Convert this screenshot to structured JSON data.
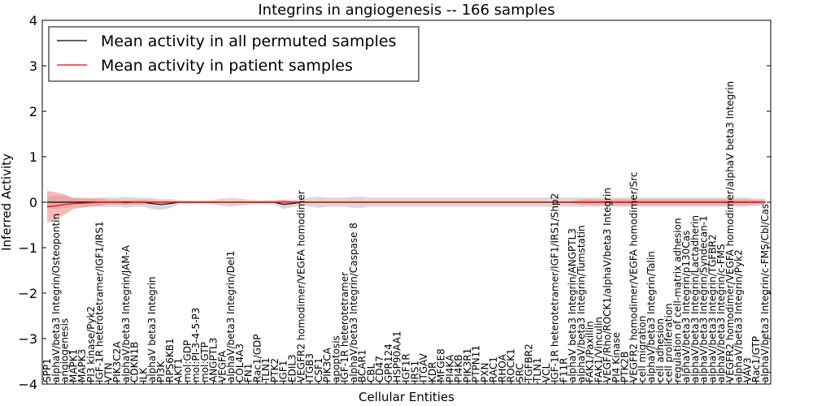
{
  "chart_data": {
    "type": "line",
    "title": "Integrins in angiogenesis -- 166 samples",
    "xlabel": "Cellular Entities",
    "ylabel": "Inferred Activity",
    "ylim": [
      -4,
      4
    ],
    "yticks": [
      -4,
      -3,
      -2,
      -1,
      0,
      1,
      2,
      3,
      4
    ],
    "ytick_labels": [
      "−4",
      "−3",
      "−2",
      "−1",
      "0",
      "1",
      "2",
      "3",
      "4"
    ],
    "grid": false,
    "legend_position": "top-left",
    "categories": [
      "SPP1",
      "alphaV/beta3 Integrin/Osteopontin",
      "angiogenesis",
      "MAPK1",
      "MAPK3",
      "PI3 kinase/Pyk2",
      "IGF-1R heterotetramer/IGF1/IRS1",
      "VTN",
      "PIK3C2A",
      "alphaV/beta3 Integrin/JAM-A",
      "CDKN1B",
      "ILK",
      "alphaV beta3 Integrin",
      "PI3K",
      "RPS6KB1",
      "AKT1",
      "mol:GDP",
      "mol:PI-3-4-5-P3",
      "mol:GTP",
      "ANGPTL3",
      "VEGFA",
      "alphaV/beta3 Integrin/Del1",
      "COL4A3",
      "FN1",
      "Rac1/GDP",
      "TLN1",
      "PTK2",
      "IGF1",
      "EDIL3",
      "VEGFR2 homodimer/VEGFA homodimer",
      "ITGB3",
      "CSF1",
      "PIK3CA",
      "apoptosis",
      "IGF-1R heterotetramer",
      "alphaV/beta3 Integrin/Caspase 8",
      "BCAR1",
      "CBL",
      "CD47",
      "GPR124",
      "HSP90AA1",
      "IGF1R",
      "IRS1",
      "ITGAV",
      "KDR",
      "MFGE8",
      "PI4KA",
      "PI4KB",
      "PIK3R1",
      "PTPN11",
      "PXN",
      "RAC1",
      "RHOA",
      "ROCK1",
      "SRC",
      "TGFBR2",
      "TLN1",
      "VCL",
      "IGF-1R heterotetramer/IGF1/IRS1/Shp2",
      "F11R",
      "alphaV beta3 Integrin/ANGPTL3",
      "alphaV/beta3 Integrin/Tumstatin",
      "FAK1/Paxillin",
      "FAK1/Vinculin",
      "VEGF/Rho/ROCK1/alphaV/beta3 Integrin",
      "PI4 Kinase",
      "PTK2B",
      "VEGFR2 homodimer/VEGFA homodimer/Src",
      "cell migration",
      "alphaV/beta3 Integrin/Talin",
      "cell adhesion",
      "cell proliferation",
      "regulation of cell-matrix adhesion",
      "alphaV/beta3 Integrin/p130Cas",
      "alphaV/beta3 Integrin/Lactadherin",
      "alphaV/beta3 Integrin/Syndecan-1",
      "alphaV/beta3 Integrin/TGFBR2",
      "alphaV/beta3 Integrin/c-FMS",
      "VEGFR2 homodimer/VEGFA homodimer/alphaV beta3 Integrin",
      "alphaV/beta3 Integrin/Pyk2",
      "VAV3",
      "Rac1/GTP",
      "alphaV/beta3 Integrin/c-FMS/Cbl/Cas"
    ],
    "series": [
      {
        "name": "Mean activity in all permuted samples",
        "color": "#000000",
        "band_color": "#aaaaaa",
        "mean": [
          0.0,
          0.0,
          0.0,
          0.0,
          0.0,
          0.0,
          0.0,
          0.0,
          0.0,
          0.0,
          0.0,
          0.0,
          -0.03,
          -0.05,
          -0.03,
          0.0,
          0.0,
          0.0,
          0.0,
          0.0,
          0.0,
          0.0,
          0.0,
          0.0,
          0.0,
          0.0,
          0.0,
          -0.05,
          -0.03,
          0.0,
          0.0,
          0.0,
          0.0,
          0.0,
          0.0,
          0.0,
          0.0,
          0.0,
          0.0,
          0.0,
          0.0,
          0.0,
          0.0,
          0.0,
          0.0,
          0.0,
          0.0,
          0.0,
          0.0,
          0.0,
          0.0,
          0.0,
          0.0,
          0.0,
          0.0,
          0.0,
          0.0,
          0.0,
          0.0,
          0.0,
          0.0,
          0.0,
          0.0,
          0.0,
          0.0,
          0.0,
          0.0,
          0.0,
          0.0,
          0.0,
          0.0,
          0.0,
          0.0,
          0.0,
          0.0,
          0.0,
          0.0,
          0.0,
          0.0,
          0.0,
          0.0,
          0.0,
          0.0
        ],
        "spread": [
          0.12,
          0.15,
          0.13,
          0.1,
          0.1,
          0.1,
          0.1,
          0.1,
          0.1,
          0.12,
          0.1,
          0.1,
          0.12,
          0.12,
          0.1,
          0.05,
          0.04,
          0.03,
          0.04,
          0.05,
          0.08,
          0.1,
          0.08,
          0.06,
          0.04,
          0.05,
          0.05,
          0.1,
          0.08,
          0.07,
          0.1,
          0.12,
          0.1,
          0.1,
          0.1,
          0.12,
          0.12,
          0.1,
          0.1,
          0.1,
          0.1,
          0.1,
          0.1,
          0.1,
          0.1,
          0.1,
          0.1,
          0.1,
          0.1,
          0.1,
          0.1,
          0.1,
          0.1,
          0.1,
          0.1,
          0.1,
          0.1,
          0.1,
          0.12,
          0.1,
          0.1,
          0.1,
          0.1,
          0.1,
          0.1,
          0.1,
          0.1,
          0.1,
          0.1,
          0.1,
          0.1,
          0.1,
          0.1,
          0.1,
          0.1,
          0.1,
          0.1,
          0.1,
          0.1,
          0.1,
          0.1,
          0.08,
          0.08
        ]
      },
      {
        "name": "Mean activity in patient samples",
        "color": "#ff0000",
        "band_color": "#f08080",
        "mean": [
          -0.1,
          -0.08,
          -0.05,
          -0.03,
          -0.02,
          -0.01,
          0.0,
          0.0,
          0.0,
          -0.01,
          0.0,
          0.0,
          0.0,
          0.0,
          0.0,
          0.0,
          0.0,
          0.0,
          0.0,
          0.0,
          0.0,
          0.0,
          0.0,
          0.0,
          0.0,
          0.0,
          0.0,
          0.0,
          0.0,
          0.0,
          0.0,
          0.0,
          0.0,
          0.0,
          0.0,
          0.0,
          0.0,
          0.0,
          0.0,
          0.0,
          0.0,
          0.0,
          0.0,
          0.0,
          0.0,
          0.0,
          0.0,
          0.0,
          0.0,
          0.0,
          0.0,
          0.0,
          0.0,
          0.0,
          0.0,
          0.0,
          0.0,
          0.0,
          0.0,
          0.0,
          0.0,
          0.0,
          0.0,
          0.0,
          0.0,
          0.0,
          0.0,
          0.0,
          0.0,
          0.0,
          0.0,
          0.0,
          0.0,
          0.0,
          0.0,
          0.0,
          0.0,
          0.0,
          0.0,
          0.0,
          0.0,
          0.0,
          0.0
        ],
        "spread": [
          0.35,
          0.3,
          0.22,
          0.12,
          0.1,
          0.08,
          0.08,
          0.05,
          0.05,
          0.05,
          0.05,
          0.05,
          0.03,
          0.03,
          0.03,
          0.02,
          0.02,
          0.02,
          0.02,
          0.02,
          0.02,
          0.02,
          0.02,
          0.02,
          0.02,
          0.02,
          0.02,
          0.06,
          0.02,
          0.02,
          0.02,
          0.02,
          0.02,
          0.02,
          0.02,
          0.02,
          0.02,
          0.02,
          0.02,
          0.02,
          0.02,
          0.02,
          0.02,
          0.02,
          0.02,
          0.02,
          0.02,
          0.02,
          0.02,
          0.02,
          0.02,
          0.02,
          0.02,
          0.02,
          0.02,
          0.02,
          0.02,
          0.02,
          0.02,
          0.02,
          0.02,
          0.06,
          0.06,
          0.06,
          0.06,
          0.06,
          0.06,
          0.06,
          0.06,
          0.06,
          0.06,
          0.06,
          0.06,
          0.06,
          0.06,
          0.06,
          0.06,
          0.06,
          0.06,
          0.06,
          0.06,
          0.05,
          0.05
        ]
      }
    ]
  }
}
